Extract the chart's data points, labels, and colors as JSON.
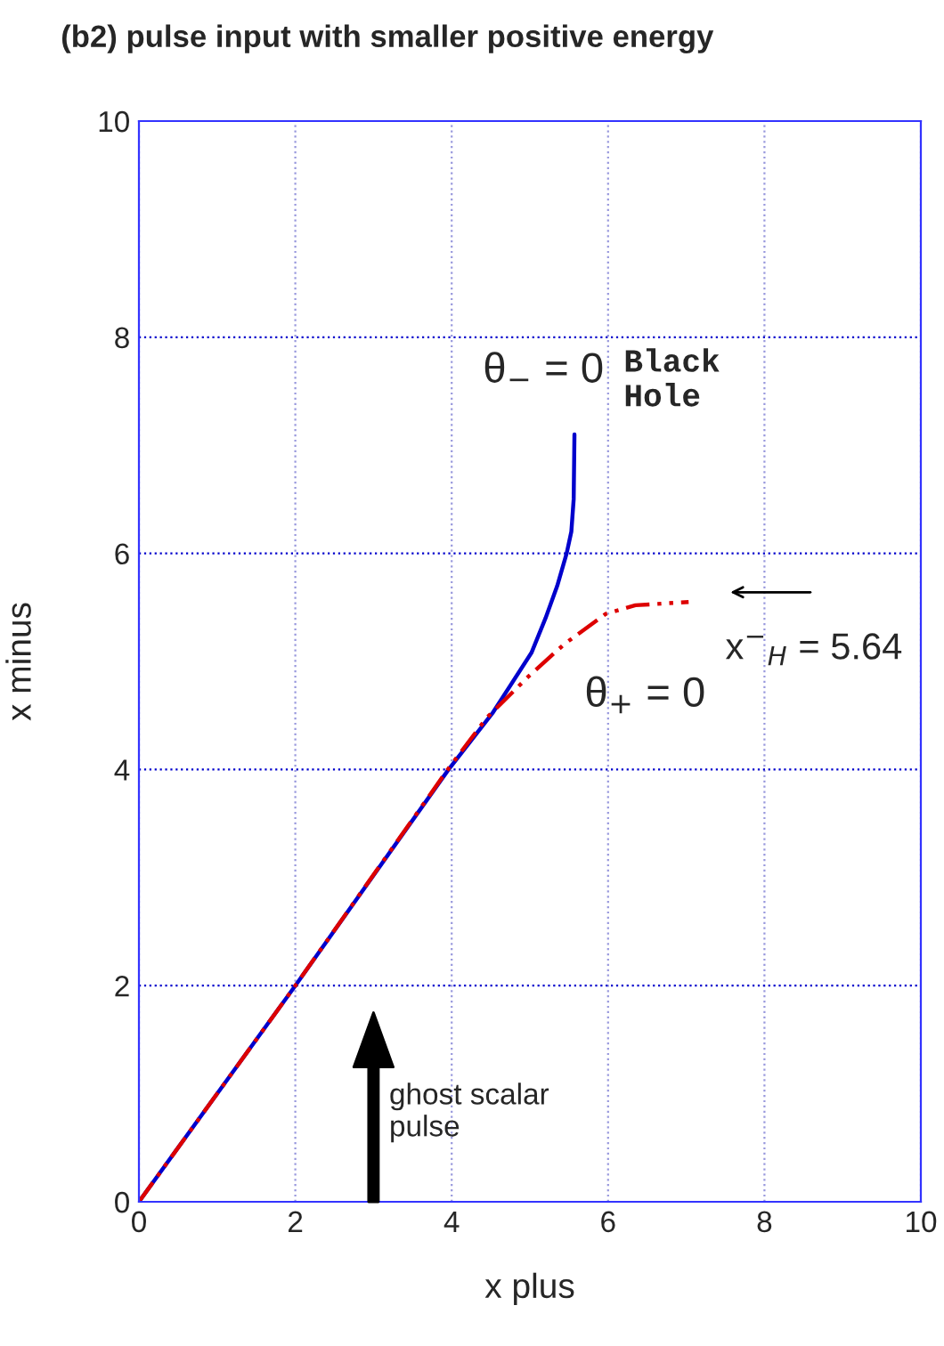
{
  "chart_data": {
    "type": "line",
    "title": "(b2) pulse input with smaller positive energy",
    "xlabel": "x plus",
    "ylabel": "x minus",
    "xlim": [
      0,
      10
    ],
    "ylim": [
      0,
      10
    ],
    "xticks": [
      0,
      2,
      4,
      6,
      8,
      10
    ],
    "yticks": [
      0,
      2,
      4,
      6,
      8,
      10
    ],
    "grid": true,
    "legend": false,
    "series": [
      {
        "color": "#0000cc",
        "line_style": "solid",
        "x": [
          0,
          2,
          3.96,
          4.53,
          5.02,
          5.2,
          5.35,
          5.47,
          5.53,
          5.56,
          5.57
        ],
        "values": [
          0,
          2,
          4.0,
          4.53,
          5.08,
          5.4,
          5.7,
          6.0,
          6.2,
          6.5,
          7.1
        ]
      },
      {
        "color": "#dd0000",
        "line_style": "dashed",
        "x": [
          0,
          2,
          3.96,
          4.45,
          4.98,
          5.44,
          5.97,
          6.35,
          7.03
        ],
        "values": [
          0,
          2,
          4.01,
          4.48,
          4.86,
          5.16,
          5.44,
          5.52,
          5.55
        ]
      }
    ],
    "annotations": [
      "θ$_{−}$ = 0",
      "Black\nHole",
      "θ$_{+}$ = 0",
      "x$^{−}$$_{H}$ = 5.64",
      "ghost scalar\npulse"
    ]
  }
}
